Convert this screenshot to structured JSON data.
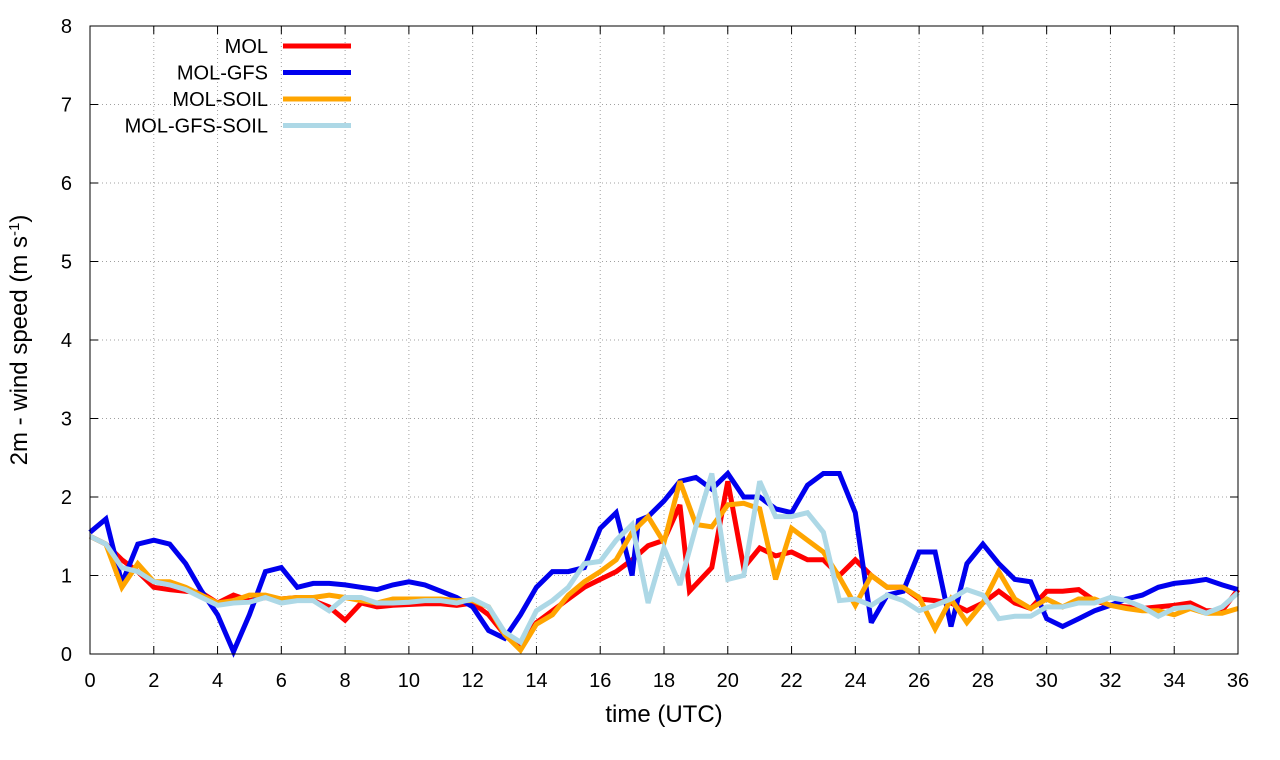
{
  "chart_data": {
    "type": "line",
    "xlabel": "time (UTC)",
    "ylabel_main": "2m - wind speed  (m s",
    "ylabel_sup": "-1",
    "ylabel_tail": ")",
    "xlim": [
      0,
      36
    ],
    "ylim": [
      0,
      8
    ],
    "xticks": [
      0,
      2,
      4,
      6,
      8,
      10,
      12,
      14,
      16,
      18,
      20,
      22,
      24,
      26,
      28,
      30,
      32,
      34,
      36
    ],
    "yticks": [
      0,
      1,
      2,
      3,
      4,
      5,
      6,
      7,
      8
    ],
    "grid": true,
    "legend_position": "top-left",
    "series": [
      {
        "name": "MOL",
        "color": "#ff0000",
        "points": [
          [
            0,
            1.5
          ],
          [
            0.5,
            1.4
          ],
          [
            1,
            1.2
          ],
          [
            1.5,
            1.05
          ],
          [
            2,
            0.85
          ],
          [
            2.5,
            0.82
          ],
          [
            3,
            0.8
          ],
          [
            3.5,
            0.78
          ],
          [
            4,
            0.65
          ],
          [
            4.5,
            0.75
          ],
          [
            5,
            0.68
          ],
          [
            5.5,
            0.72
          ],
          [
            6,
            0.7
          ],
          [
            6.5,
            0.72
          ],
          [
            7,
            0.68
          ],
          [
            7.5,
            0.6
          ],
          [
            8,
            0.43
          ],
          [
            8.5,
            0.65
          ],
          [
            9,
            0.6
          ],
          [
            9.5,
            0.62
          ],
          [
            10,
            0.63
          ],
          [
            10.5,
            0.64
          ],
          [
            11,
            0.64
          ],
          [
            11.5,
            0.62
          ],
          [
            12,
            0.65
          ],
          [
            12.5,
            0.5
          ],
          [
            13,
            0.25
          ],
          [
            13.5,
            0.12
          ],
          [
            14,
            0.4
          ],
          [
            14.5,
            0.55
          ],
          [
            15,
            0.7
          ],
          [
            15.5,
            0.85
          ],
          [
            16,
            0.95
          ],
          [
            16.5,
            1.05
          ],
          [
            17,
            1.2
          ],
          [
            17.5,
            1.38
          ],
          [
            18,
            1.45
          ],
          [
            18.5,
            1.9
          ],
          [
            18.8,
            0.8
          ],
          [
            19.5,
            1.1
          ],
          [
            20,
            2.2
          ],
          [
            20.5,
            1.1
          ],
          [
            21,
            1.35
          ],
          [
            21.5,
            1.25
          ],
          [
            22,
            1.3
          ],
          [
            22.5,
            1.2
          ],
          [
            23,
            1.2
          ],
          [
            23.5,
            1.0
          ],
          [
            24,
            1.2
          ],
          [
            24.5,
            1.0
          ],
          [
            25,
            0.85
          ],
          [
            25.5,
            0.85
          ],
          [
            26,
            0.7
          ],
          [
            26.5,
            0.68
          ],
          [
            27,
            0.65
          ],
          [
            27.5,
            0.55
          ],
          [
            28,
            0.65
          ],
          [
            28.5,
            0.8
          ],
          [
            29,
            0.65
          ],
          [
            29.5,
            0.58
          ],
          [
            30,
            0.8
          ],
          [
            30.5,
            0.8
          ],
          [
            31,
            0.82
          ],
          [
            31.5,
            0.68
          ],
          [
            32,
            0.62
          ],
          [
            32.5,
            0.6
          ],
          [
            33,
            0.58
          ],
          [
            33.5,
            0.6
          ],
          [
            34,
            0.62
          ],
          [
            34.5,
            0.65
          ],
          [
            35,
            0.55
          ],
          [
            35.5,
            0.55
          ],
          [
            36,
            0.82
          ]
        ]
      },
      {
        "name": "MOL-GFS",
        "color": "#0000ee",
        "points": [
          [
            0,
            1.55
          ],
          [
            0.5,
            1.72
          ],
          [
            1,
            0.9
          ],
          [
            1.5,
            1.4
          ],
          [
            2,
            1.45
          ],
          [
            2.5,
            1.4
          ],
          [
            3,
            1.15
          ],
          [
            3.5,
            0.8
          ],
          [
            4,
            0.5
          ],
          [
            4.5,
            0.03
          ],
          [
            5,
            0.5
          ],
          [
            5.5,
            1.05
          ],
          [
            6,
            1.1
          ],
          [
            6.5,
            0.85
          ],
          [
            7,
            0.9
          ],
          [
            7.5,
            0.9
          ],
          [
            8,
            0.88
          ],
          [
            8.5,
            0.85
          ],
          [
            9,
            0.82
          ],
          [
            9.5,
            0.88
          ],
          [
            10,
            0.92
          ],
          [
            10.5,
            0.88
          ],
          [
            11,
            0.8
          ],
          [
            11.5,
            0.72
          ],
          [
            12,
            0.6
          ],
          [
            12.5,
            0.3
          ],
          [
            13,
            0.2
          ],
          [
            13.5,
            0.5
          ],
          [
            14,
            0.85
          ],
          [
            14.5,
            1.05
          ],
          [
            15,
            1.05
          ],
          [
            15.5,
            1.1
          ],
          [
            16,
            1.6
          ],
          [
            16.5,
            1.8
          ],
          [
            17,
            1.0
          ],
          [
            17.2,
            1.7
          ],
          [
            17.5,
            1.75
          ],
          [
            18,
            1.95
          ],
          [
            18.5,
            2.2
          ],
          [
            19,
            2.25
          ],
          [
            19.5,
            2.1
          ],
          [
            20,
            2.3
          ],
          [
            20.5,
            2.0
          ],
          [
            21,
            2.0
          ],
          [
            21.5,
            1.85
          ],
          [
            22,
            1.8
          ],
          [
            22.5,
            2.15
          ],
          [
            23,
            2.3
          ],
          [
            23.5,
            2.3
          ],
          [
            24,
            1.8
          ],
          [
            24.5,
            0.4
          ],
          [
            25,
            0.75
          ],
          [
            25.5,
            0.8
          ],
          [
            26,
            1.3
          ],
          [
            26.5,
            1.3
          ],
          [
            27,
            0.35
          ],
          [
            27.5,
            1.15
          ],
          [
            28,
            1.4
          ],
          [
            28.5,
            1.15
          ],
          [
            29,
            0.95
          ],
          [
            29.5,
            0.92
          ],
          [
            30,
            0.45
          ],
          [
            30.5,
            0.35
          ],
          [
            31,
            0.45
          ],
          [
            31.5,
            0.55
          ],
          [
            32,
            0.62
          ],
          [
            32.5,
            0.7
          ],
          [
            33,
            0.75
          ],
          [
            33.5,
            0.85
          ],
          [
            34,
            0.9
          ],
          [
            34.5,
            0.92
          ],
          [
            35,
            0.95
          ],
          [
            35.5,
            0.88
          ],
          [
            36,
            0.82
          ]
        ]
      },
      {
        "name": "MOL-SOIL",
        "color": "#ffa500",
        "points": [
          [
            0,
            1.5
          ],
          [
            0.5,
            1.4
          ],
          [
            1,
            0.85
          ],
          [
            1.5,
            1.15
          ],
          [
            2,
            0.92
          ],
          [
            2.5,
            0.92
          ],
          [
            3,
            0.85
          ],
          [
            3.5,
            0.75
          ],
          [
            4,
            0.65
          ],
          [
            4.5,
            0.68
          ],
          [
            5,
            0.75
          ],
          [
            5.5,
            0.75
          ],
          [
            6,
            0.7
          ],
          [
            6.5,
            0.72
          ],
          [
            7,
            0.72
          ],
          [
            7.5,
            0.75
          ],
          [
            8,
            0.72
          ],
          [
            8.5,
            0.68
          ],
          [
            9,
            0.65
          ],
          [
            9.5,
            0.7
          ],
          [
            10,
            0.7
          ],
          [
            10.5,
            0.7
          ],
          [
            11,
            0.7
          ],
          [
            11.5,
            0.68
          ],
          [
            12,
            0.68
          ],
          [
            12.5,
            0.6
          ],
          [
            13,
            0.25
          ],
          [
            13.5,
            0.05
          ],
          [
            14,
            0.38
          ],
          [
            14.5,
            0.5
          ],
          [
            15,
            0.75
          ],
          [
            15.5,
            0.92
          ],
          [
            16,
            1.05
          ],
          [
            16.5,
            1.2
          ],
          [
            17,
            1.55
          ],
          [
            17.5,
            1.75
          ],
          [
            18,
            1.42
          ],
          [
            18.5,
            2.2
          ],
          [
            19,
            1.65
          ],
          [
            19.5,
            1.62
          ],
          [
            20,
            1.9
          ],
          [
            20.5,
            1.92
          ],
          [
            21,
            1.85
          ],
          [
            21.5,
            0.95
          ],
          [
            22,
            1.6
          ],
          [
            22.5,
            1.45
          ],
          [
            23,
            1.3
          ],
          [
            23.5,
            0.98
          ],
          [
            24,
            0.62
          ],
          [
            24.5,
            1.0
          ],
          [
            25,
            0.85
          ],
          [
            25.5,
            0.85
          ],
          [
            26,
            0.72
          ],
          [
            26.5,
            0.32
          ],
          [
            27,
            0.7
          ],
          [
            27.5,
            0.4
          ],
          [
            28,
            0.65
          ],
          [
            28.5,
            1.05
          ],
          [
            29,
            0.7
          ],
          [
            29.5,
            0.58
          ],
          [
            30,
            0.7
          ],
          [
            30.5,
            0.6
          ],
          [
            31,
            0.7
          ],
          [
            31.5,
            0.7
          ],
          [
            32,
            0.62
          ],
          [
            32.5,
            0.58
          ],
          [
            33,
            0.55
          ],
          [
            33.5,
            0.55
          ],
          [
            34,
            0.5
          ],
          [
            34.5,
            0.58
          ],
          [
            35,
            0.52
          ],
          [
            35.5,
            0.52
          ],
          [
            36,
            0.58
          ]
        ]
      },
      {
        "name": "MOL-GFS-SOIL",
        "color": "#add8e6",
        "points": [
          [
            0,
            1.5
          ],
          [
            0.5,
            1.4
          ],
          [
            1,
            1.1
          ],
          [
            1.5,
            1.05
          ],
          [
            2,
            0.92
          ],
          [
            2.5,
            0.88
          ],
          [
            3,
            0.82
          ],
          [
            3.5,
            0.72
          ],
          [
            4,
            0.62
          ],
          [
            4.5,
            0.65
          ],
          [
            5,
            0.66
          ],
          [
            5.5,
            0.72
          ],
          [
            6,
            0.65
          ],
          [
            6.5,
            0.68
          ],
          [
            7,
            0.68
          ],
          [
            7.5,
            0.55
          ],
          [
            8,
            0.72
          ],
          [
            8.5,
            0.72
          ],
          [
            9,
            0.65
          ],
          [
            9.5,
            0.65
          ],
          [
            10,
            0.66
          ],
          [
            10.5,
            0.68
          ],
          [
            11,
            0.68
          ],
          [
            11.5,
            0.65
          ],
          [
            12,
            0.7
          ],
          [
            12.5,
            0.6
          ],
          [
            13,
            0.28
          ],
          [
            13.5,
            0.15
          ],
          [
            14,
            0.55
          ],
          [
            14.5,
            0.68
          ],
          [
            15,
            0.85
          ],
          [
            15.5,
            1.15
          ],
          [
            16,
            1.18
          ],
          [
            16.5,
            1.45
          ],
          [
            17,
            1.65
          ],
          [
            17.5,
            0.65
          ],
          [
            18,
            1.35
          ],
          [
            18.5,
            0.88
          ],
          [
            19,
            1.62
          ],
          [
            19.5,
            2.3
          ],
          [
            20,
            0.95
          ],
          [
            20.5,
            1.0
          ],
          [
            21,
            2.2
          ],
          [
            21.5,
            1.75
          ],
          [
            22,
            1.75
          ],
          [
            22.5,
            1.8
          ],
          [
            23,
            1.55
          ],
          [
            23.5,
            0.68
          ],
          [
            24,
            0.7
          ],
          [
            24.5,
            0.62
          ],
          [
            25,
            0.75
          ],
          [
            25.5,
            0.68
          ],
          [
            26,
            0.55
          ],
          [
            26.5,
            0.62
          ],
          [
            27,
            0.7
          ],
          [
            27.5,
            0.82
          ],
          [
            28,
            0.75
          ],
          [
            28.5,
            0.45
          ],
          [
            29,
            0.48
          ],
          [
            29.5,
            0.48
          ],
          [
            30,
            0.6
          ],
          [
            30.5,
            0.6
          ],
          [
            31,
            0.65
          ],
          [
            31.5,
            0.65
          ],
          [
            32,
            0.72
          ],
          [
            32.5,
            0.68
          ],
          [
            33,
            0.6
          ],
          [
            33.5,
            0.48
          ],
          [
            34,
            0.58
          ],
          [
            34.5,
            0.6
          ],
          [
            35,
            0.52
          ],
          [
            35.5,
            0.6
          ],
          [
            36,
            0.78
          ]
        ]
      }
    ]
  }
}
